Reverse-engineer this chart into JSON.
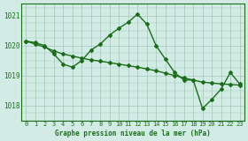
{
  "line_main": {
    "x": [
      0,
      1,
      2,
      3,
      4,
      5,
      6,
      7,
      8,
      9,
      10,
      11,
      12,
      13,
      14,
      15,
      16,
      17,
      18,
      19,
      20,
      21,
      22,
      23
    ],
    "y": [
      1020.15,
      1020.1,
      1020.0,
      1019.72,
      1019.38,
      1019.28,
      1019.5,
      1019.85,
      1020.05,
      1020.35,
      1020.58,
      1020.78,
      1021.05,
      1020.72,
      1020.0,
      1019.55,
      1019.1,
      1018.85,
      1018.85,
      1017.9,
      1018.2,
      1018.55,
      1019.1,
      1018.72
    ]
  },
  "line_smooth": {
    "x": [
      0,
      1,
      2,
      3,
      4,
      5,
      6,
      7,
      8,
      9,
      10,
      11,
      12,
      13,
      14,
      15,
      16,
      17,
      18,
      19,
      20,
      21,
      22,
      23
    ],
    "y": [
      1020.15,
      1020.05,
      1019.95,
      1019.82,
      1019.72,
      1019.65,
      1019.58,
      1019.52,
      1019.48,
      1019.43,
      1019.38,
      1019.33,
      1019.28,
      1019.22,
      1019.16,
      1019.08,
      1019.0,
      1018.92,
      1018.85,
      1018.78,
      1018.75,
      1018.72,
      1018.7,
      1018.68
    ]
  },
  "color": "#1a6e1a",
  "bg_color": "#d2ece5",
  "grid_color": "#a0c8b8",
  "xlabel": "Graphe pression niveau de la mer (hPa)",
  "xlim": [
    -0.5,
    23.5
  ],
  "ylim": [
    1017.5,
    1021.4
  ],
  "yticks": [
    1018,
    1019,
    1020,
    1021
  ],
  "xticks": [
    0,
    1,
    2,
    3,
    4,
    5,
    6,
    7,
    8,
    9,
    10,
    11,
    12,
    13,
    14,
    15,
    16,
    17,
    18,
    19,
    20,
    21,
    22,
    23
  ],
  "marker": "D",
  "markersize": 2.0,
  "linewidth": 1.0,
  "tick_fontsize": 5.0,
  "label_fontsize": 5.5
}
